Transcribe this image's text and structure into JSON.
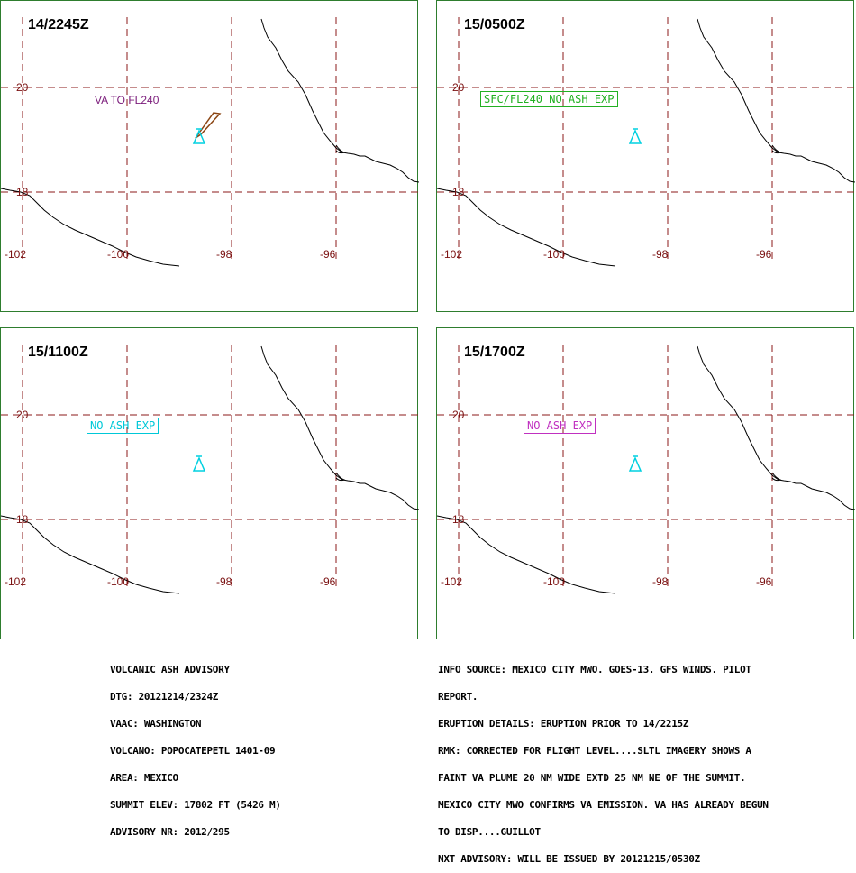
{
  "colors": {
    "border": "#2e7d2e",
    "grid": "#8b1a1a",
    "coast": "#000000",
    "volcano": "#00d0e0",
    "plume": "#8b4513",
    "va_text": "#7a1a7a",
    "green_box": "#22b022",
    "cyan_box": "#00c8d8",
    "magenta_box": "#c030c0"
  },
  "axes": {
    "lat_labels": [
      "20",
      "18"
    ],
    "lon_labels": [
      "-102",
      "-100",
      "-98",
      "-96"
    ]
  },
  "panels": [
    {
      "title": "14/2245Z",
      "note": "VA TO FL240",
      "note_style": "purple-text",
      "plume": true
    },
    {
      "title": "15/0500Z",
      "note": "SFC/FL240 NO ASH EXP",
      "note_style": "green-box",
      "plume": false
    },
    {
      "title": "15/1100Z",
      "note": "NO ASH EXP",
      "note_style": "cyan-box",
      "plume": false
    },
    {
      "title": "15/1700Z",
      "note": "NO ASH EXP",
      "note_style": "magenta-box",
      "plume": false
    }
  ],
  "advisory_left": [
    "VOLCANIC ASH ADVISORY",
    "DTG: 20121214/2324Z",
    "VAAC: WASHINGTON",
    "VOLCANO: POPOCATEPETL 1401-09",
    "AREA: MEXICO",
    "SUMMIT ELEV: 17802 FT (5426 M)",
    "ADVISORY NR: 2012/295"
  ],
  "advisory_right": [
    "INFO SOURCE: MEXICO CITY MWO. GOES-13. GFS WINDS. PILOT",
    "REPORT.",
    "ERUPTION DETAILS: ERUPTION PRIOR TO 14/2215Z",
    "RMK: CORRECTED FOR FLIGHT LEVEL....SLTL IMAGERY SHOWS A",
    "FAINT VA PLUME 20 NM WIDE EXTD 25 NM NE OF THE SUMMIT.",
    "MEXICO CITY MWO CONFIRMS VA EMISSION. VA HAS ALREADY BEGUN",
    "TO DISP....GUILLOT",
    "NXT ADVISORY: WILL BE ISSUED BY 20121215/0530Z"
  ]
}
